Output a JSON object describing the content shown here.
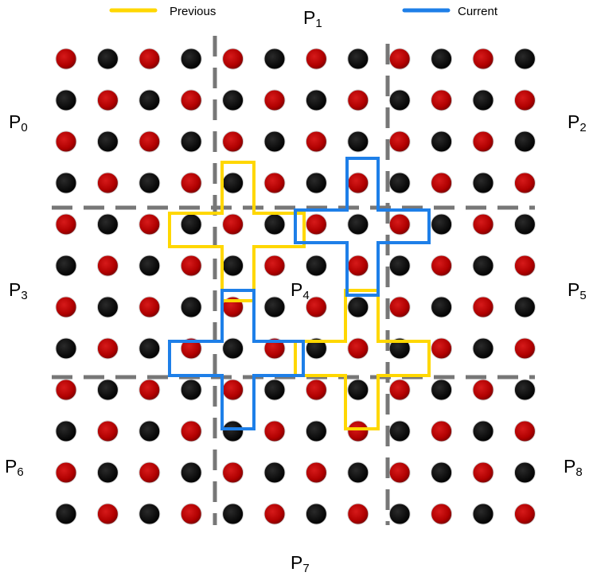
{
  "legend": {
    "previous": {
      "label": "Previous",
      "color": "#FFD700"
    },
    "current": {
      "label": "Current",
      "color": "#1E7FE8"
    }
  },
  "partitions": [
    {
      "id": "P0",
      "letter": "P",
      "index": "0"
    },
    {
      "id": "P1",
      "letter": "P",
      "index": "1"
    },
    {
      "id": "P2",
      "letter": "P",
      "index": "2"
    },
    {
      "id": "P3",
      "letter": "P",
      "index": "3"
    },
    {
      "id": "P4",
      "letter": "P",
      "index": "4"
    },
    {
      "id": "P5",
      "letter": "P",
      "index": "5"
    },
    {
      "id": "P6",
      "letter": "P",
      "index": "6"
    },
    {
      "id": "P7",
      "letter": "P",
      "index": "7"
    },
    {
      "id": "P8",
      "letter": "P",
      "index": "8"
    }
  ],
  "grid": {
    "rows": 12,
    "cols": 12,
    "colors": {
      "red": "#B50000",
      "black": "#111111",
      "divider": "#777777"
    },
    "pattern": [
      "RBRBRBRBRBRB",
      "BRBRBRBRBRBR",
      "RBRBRBRBRBRB",
      "BRBRBRBRBRBR",
      "RBRBRBRBRBRB",
      "BRBRBRBRBRBR",
      "RBRBRBRBRBRB",
      "BRBRBRBRBRBR",
      "RBRBRBRBRBRB",
      "BRBRBRBRBRBR",
      "RBRBRBRBRBRB",
      "BRBRBRBRBRBR"
    ]
  }
}
